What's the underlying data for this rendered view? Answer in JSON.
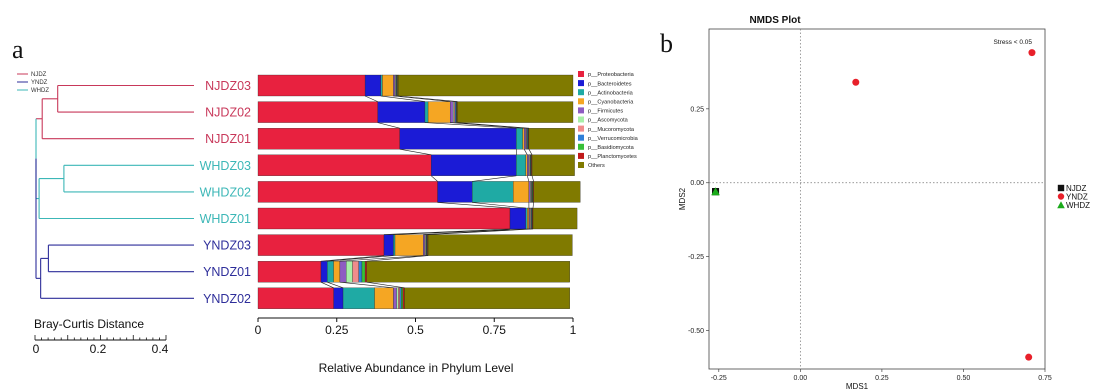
{
  "chart_data": [
    {
      "panel_label": "a",
      "type": "bar",
      "subtype": "stacked-horizontal-100-with-dendrogram",
      "tree_legend": [
        {
          "name": "NJDZ",
          "color": "#c8385a"
        },
        {
          "name": "YNDZ",
          "color": "#2e2e9a"
        },
        {
          "name": "WHDZ",
          "color": "#3cb7b7"
        }
      ],
      "dendrogram": {
        "axis_title": "Bray-Curtis Distance",
        "ticks": [
          0,
          0.2,
          0.4
        ],
        "tick_labels": [
          "0",
          "0.2",
          "0.4"
        ],
        "xlim": [
          0,
          0.5
        ]
      },
      "categories": [
        "NJDZ03",
        "NJDZ02",
        "NJDZ01",
        "WHDZ03",
        "WHDZ02",
        "WHDZ01",
        "YNDZ03",
        "YNDZ01",
        "YNDZ02"
      ],
      "category_colors": [
        "#c8385a",
        "#c8385a",
        "#c8385a",
        "#3cb7b7",
        "#3cb7b7",
        "#3cb7b7",
        "#2e2e9a",
        "#2e2e9a",
        "#2e2e9a"
      ],
      "series": [
        {
          "name": "p__Proteobacteria",
          "color": "#e8213f",
          "values": [
            0.34,
            0.38,
            0.45,
            0.55,
            0.57,
            0.8,
            0.4,
            0.2,
            0.24
          ]
        },
        {
          "name": "p__Bacteroidetes",
          "color": "#1b1bd6",
          "values": [
            0.05,
            0.15,
            0.37,
            0.27,
            0.11,
            0.05,
            0.03,
            0.02,
            0.03
          ]
        },
        {
          "name": "p__Actinobacteria",
          "color": "#1faaa4",
          "values": [
            0.005,
            0.01,
            0.02,
            0.03,
            0.13,
            0.005,
            0.005,
            0.02,
            0.1
          ]
        },
        {
          "name": "p__Cyanobacteria",
          "color": "#f5a623",
          "values": [
            0.035,
            0.07,
            0.005,
            0.005,
            0.05,
            0.005,
            0.09,
            0.02,
            0.06
          ]
        },
        {
          "name": "p__Firmicutes",
          "color": "#8e5cc2",
          "values": [
            0.005,
            0.01,
            0.005,
            0.005,
            0.005,
            0.003,
            0.005,
            0.02,
            0.01
          ]
        },
        {
          "name": "p__Ascomycota",
          "color": "#a8f0a8",
          "values": [
            0.002,
            0.003,
            0.002,
            0.002,
            0.002,
            0.002,
            0.002,
            0.02,
            0.005
          ]
        },
        {
          "name": "p__Mucoromycota",
          "color": "#f08c8c",
          "values": [
            0.002,
            0.003,
            0.002,
            0.002,
            0.002,
            0.002,
            0.002,
            0.02,
            0.005
          ]
        },
        {
          "name": "p__Verrucomicrobia",
          "color": "#2f7fd8",
          "values": [
            0.002,
            0.003,
            0.002,
            0.002,
            0.002,
            0.002,
            0.002,
            0.01,
            0.005
          ]
        },
        {
          "name": "p__Basidiomycota",
          "color": "#38c038",
          "values": [
            0.002,
            0.002,
            0.002,
            0.002,
            0.002,
            0.002,
            0.002,
            0.01,
            0.005
          ]
        },
        {
          "name": "p__Planctomycetes",
          "color": "#c01a1a",
          "values": [
            0.002,
            0.002,
            0.002,
            0.002,
            0.002,
            0.002,
            0.002,
            0.005,
            0.005
          ]
        },
        {
          "name": "Others",
          "color": "#807a00",
          "values": [
            0.555,
            0.367,
            0.145,
            0.135,
            0.148,
            0.14,
            0.458,
            0.645,
            0.525
          ]
        }
      ],
      "xlabel": "Relative Abundance in Phylum Level",
      "xticks": [
        0,
        0.25,
        0.5,
        0.75,
        1
      ],
      "xtick_labels": [
        "0",
        "0.25",
        "0.5",
        "0.75",
        "1"
      ],
      "xlim": [
        0,
        1
      ]
    },
    {
      "panel_label": "b",
      "type": "scatter",
      "title": "NMDS Plot",
      "annotation": "Stress < 0.05",
      "xlabel": "MDS1",
      "ylabel": "MDS2",
      "xlim": [
        -0.28,
        0.75
      ],
      "ylim": [
        -0.63,
        0.52
      ],
      "xticks": [
        -0.25,
        0,
        0.25,
        0.5,
        0.75
      ],
      "xtick_labels": [
        "-0.25",
        "0.00",
        "0.25",
        "0.50",
        "0.75"
      ],
      "yticks": [
        -0.5,
        -0.25,
        0,
        0.25
      ],
      "ytick_labels": [
        "-0.50",
        "-0.25",
        "0.00",
        "0.25"
      ],
      "series": [
        {
          "name": "NJDZ",
          "marker": "square",
          "color": "#111111",
          "points": [
            [
              -0.26,
              -0.03
            ],
            [
              -0.26,
              -0.03
            ],
            [
              -0.26,
              -0.03
            ]
          ]
        },
        {
          "name": "YNDZ",
          "marker": "circle",
          "color": "#e8202a",
          "points": [
            [
              0.71,
              0.44
            ],
            [
              0.17,
              0.34
            ],
            [
              0.7,
              -0.59
            ]
          ]
        },
        {
          "name": "WHDZ",
          "marker": "triangle",
          "color": "#1aaa1a",
          "points": [
            [
              -0.26,
              -0.03
            ],
            [
              -0.26,
              -0.03
            ],
            [
              -0.26,
              -0.03
            ]
          ]
        }
      ],
      "legend_labels": [
        "NJDZ",
        "YNDZ",
        "WHDZ"
      ],
      "legend_position": "right"
    }
  ]
}
